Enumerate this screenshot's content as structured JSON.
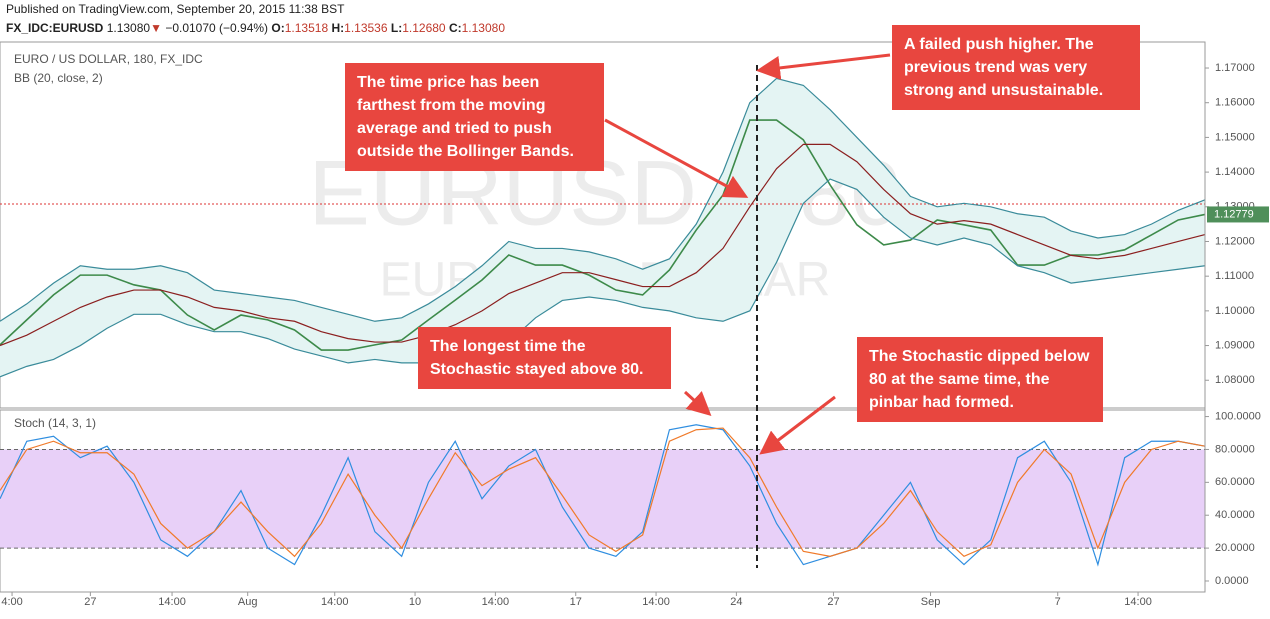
{
  "header": {
    "published": "Published on TradingView.com, September 20, 2015 11:38 BST",
    "symbol": "FX_IDC:EURUSD",
    "price": "1.13080",
    "change": "−0.01070 (−0.94%)",
    "ohlc": [
      {
        "key": "O:",
        "value": "1.13518"
      },
      {
        "key": "H:",
        "value": "1.13536"
      },
      {
        "key": "L:",
        "value": "1.12680"
      },
      {
        "key": "C:",
        "value": "1.13080"
      }
    ]
  },
  "chart_data": [
    {
      "type": "line",
      "title": "EURO / US DOLLAR, 180, FX_IDC",
      "subtitle": "BB (20, close, 2)",
      "watermark": "EURUSD, 180",
      "watermark_sub": "EURO / US DOLLAR",
      "x": [
        0,
        4,
        8,
        12,
        16,
        20,
        24,
        28,
        32,
        36,
        40,
        44,
        48,
        52,
        56,
        60,
        64,
        68,
        72,
        76,
        80,
        84,
        88,
        92,
        96,
        100,
        104,
        108,
        112,
        116,
        120,
        124,
        128,
        132,
        136,
        140,
        144,
        148,
        152,
        156,
        160,
        164,
        168,
        172,
        176,
        180
      ],
      "xlim": [
        0,
        180
      ],
      "ylim": [
        1.072,
        1.1775
      ],
      "yticks": [
        {
          "value": 1.08,
          "label": "1.08000"
        },
        {
          "value": 1.09,
          "label": "1.09000"
        },
        {
          "value": 1.1,
          "label": "1.10000"
        },
        {
          "value": 1.11,
          "label": "1.11000"
        },
        {
          "value": 1.12,
          "label": "1.12000"
        },
        {
          "value": 1.13,
          "label": "1.13000"
        },
        {
          "value": 1.14,
          "label": "1.14000"
        },
        {
          "value": 1.15,
          "label": "1.15000"
        },
        {
          "value": 1.16,
          "label": "1.16000"
        },
        {
          "value": 1.17,
          "label": "1.17000"
        }
      ],
      "ref_line": 1.1308,
      "price_marker": {
        "value": 1.12779,
        "label": "1.12779"
      },
      "band_fill": "#e4f4f3",
      "series": [
        {
          "color": "#3d8a4a",
          "values": [
            1.0902,
            1.0974,
            1.1046,
            1.1103,
            1.1103,
            1.1075,
            1.106,
            1.0988,
            1.0945,
            1.0988,
            1.0974,
            1.0945,
            1.0887,
            1.0887,
            1.0902,
            1.0916,
            1.0974,
            1.1031,
            1.1089,
            1.1161,
            1.1132,
            1.1132,
            1.1103,
            1.106,
            1.1046,
            1.1118,
            1.1233,
            1.1334,
            1.155,
            1.155,
            1.1493,
            1.1363,
            1.1248,
            1.119,
            1.1204,
            1.1262,
            1.1248,
            1.1233,
            1.1132,
            1.1132,
            1.1161,
            1.1161,
            1.1176,
            1.1219,
            1.1262,
            1.12779
          ]
        },
        {
          "color": "#3a8b9a",
          "values": [
            1.097,
            1.102,
            1.108,
            1.113,
            1.112,
            1.112,
            1.113,
            1.111,
            1.106,
            1.105,
            1.104,
            1.103,
            1.101,
            1.099,
            1.097,
            1.098,
            1.102,
            1.107,
            1.113,
            1.12,
            1.118,
            1.118,
            1.117,
            1.115,
            1.112,
            1.115,
            1.125,
            1.14,
            1.16,
            1.167,
            1.165,
            1.158,
            1.15,
            1.142,
            1.133,
            1.13,
            1.131,
            1.13,
            1.128,
            1.127,
            1.123,
            1.121,
            1.122,
            1.125,
            1.129,
            1.132
          ]
        },
        {
          "color": "#8b1f1f",
          "values": [
            1.09,
            1.093,
            1.097,
            1.101,
            1.104,
            1.106,
            1.106,
            1.104,
            1.101,
            1.1,
            1.098,
            1.097,
            1.094,
            1.092,
            1.091,
            1.091,
            1.093,
            1.096,
            1.1,
            1.105,
            1.108,
            1.111,
            1.111,
            1.109,
            1.107,
            1.107,
            1.111,
            1.118,
            1.13,
            1.141,
            1.148,
            1.148,
            1.143,
            1.135,
            1.128,
            1.125,
            1.126,
            1.125,
            1.122,
            1.119,
            1.116,
            1.115,
            1.116,
            1.118,
            1.12,
            1.122
          ]
        },
        {
          "color": "#3a8b9a",
          "values": [
            1.081,
            1.084,
            1.086,
            1.09,
            1.095,
            1.099,
            1.099,
            1.096,
            1.094,
            1.094,
            1.092,
            1.089,
            1.087,
            1.085,
            1.086,
            1.085,
            1.085,
            1.086,
            1.088,
            1.091,
            1.098,
            1.103,
            1.104,
            1.103,
            1.101,
            1.1,
            1.098,
            1.097,
            1.1,
            1.114,
            1.131,
            1.138,
            1.135,
            1.127,
            1.121,
            1.119,
            1.121,
            1.119,
            1.113,
            1.111,
            1.108,
            1.109,
            1.11,
            1.111,
            1.112,
            1.113
          ]
        }
      ],
      "annotations": [
        "The time price has been farthest from the moving average and tried to push outside the Bollinger Bands.",
        "A failed push higher. The previous trend was very strong and unsustainable.",
        "The longest time the Stochastic stayed above 80.",
        "The Stochastic dipped below 80 at the same time, the pinbar had formed."
      ]
    },
    {
      "type": "line",
      "title": "Stoch (14, 3, 1)",
      "x": [
        0,
        4,
        8,
        12,
        16,
        20,
        24,
        28,
        32,
        36,
        40,
        44,
        48,
        52,
        56,
        60,
        64,
        68,
        72,
        76,
        80,
        84,
        88,
        92,
        96,
        100,
        104,
        108,
        112,
        116,
        120,
        124,
        128,
        132,
        136,
        140,
        144,
        148,
        152,
        156,
        160,
        164,
        168,
        172,
        176,
        180
      ],
      "xlim": [
        0,
        180
      ],
      "ylim": [
        -6.7,
        104
      ],
      "yticks": [
        {
          "value": 0,
          "label": "0.0000"
        },
        {
          "value": 20,
          "label": "20.0000"
        },
        {
          "value": 40,
          "label": "40.0000"
        },
        {
          "value": 60,
          "label": "60.0000"
        },
        {
          "value": 80,
          "label": "80.0000"
        },
        {
          "value": 100,
          "label": "100.0000"
        }
      ],
      "xticks": [
        {
          "value": 1.8,
          "label": "4:00"
        },
        {
          "value": 13.5,
          "label": "27"
        },
        {
          "value": 25.7,
          "label": "14:00"
        },
        {
          "value": 37,
          "label": "Aug"
        },
        {
          "value": 50,
          "label": "14:00"
        },
        {
          "value": 62,
          "label": "10"
        },
        {
          "value": 74,
          "label": "14:00"
        },
        {
          "value": 86,
          "label": "17"
        },
        {
          "value": 98,
          "label": "14:00"
        },
        {
          "value": 110,
          "label": "24"
        },
        {
          "value": 124.5,
          "label": "27"
        },
        {
          "value": 139,
          "label": "Sep"
        },
        {
          "value": 158,
          "label": "7"
        },
        {
          "value": 170,
          "label": "14:00"
        }
      ],
      "bands": [
        20,
        80
      ],
      "band_fill": "#e8d0f8",
      "series": [
        {
          "color": "#2f8ee0",
          "values": [
            50,
            85,
            88,
            75,
            82,
            60,
            25,
            15,
            30,
            55,
            20,
            10,
            40,
            75,
            30,
            15,
            60,
            85,
            50,
            70,
            80,
            45,
            20,
            15,
            30,
            92,
            95,
            92,
            70,
            35,
            10,
            15,
            20,
            40,
            60,
            25,
            10,
            25,
            75,
            85,
            60,
            10,
            75,
            85,
            85,
            82
          ]
        },
        {
          "color": "#f07a2a",
          "values": [
            55,
            80,
            85,
            78,
            78,
            65,
            35,
            20,
            30,
            48,
            30,
            15,
            35,
            65,
            40,
            20,
            50,
            78,
            58,
            68,
            75,
            52,
            28,
            18,
            28,
            85,
            92,
            93,
            75,
            45,
            18,
            15,
            20,
            35,
            55,
            30,
            15,
            22,
            60,
            80,
            65,
            20,
            60,
            80,
            85,
            82
          ]
        }
      ]
    }
  ]
}
